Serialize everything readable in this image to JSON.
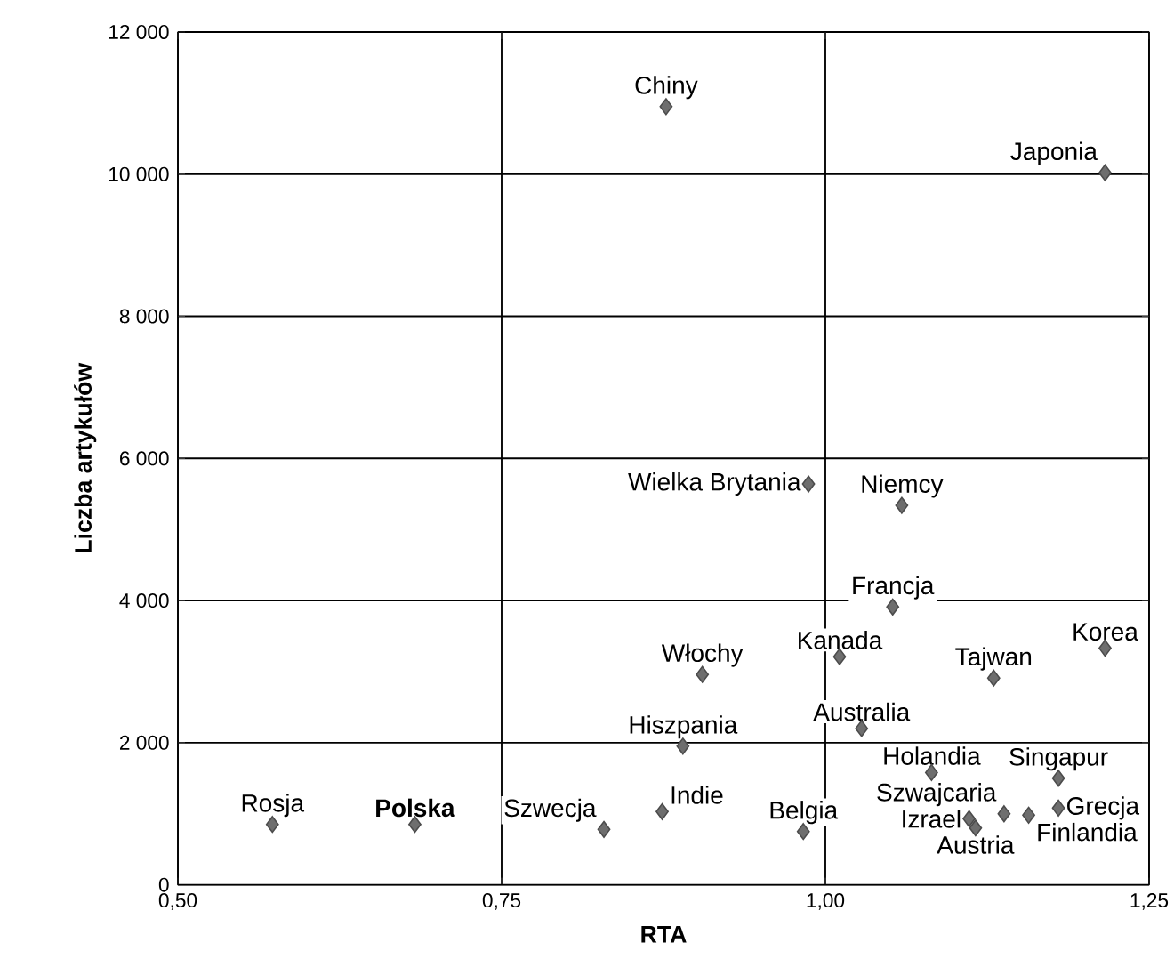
{
  "chart_data": {
    "type": "scatter",
    "xlabel": "RTA",
    "ylabel": "Liczba artykułów",
    "x": [
      0.573,
      0.683,
      0.829,
      0.874,
      0.89,
      0.983,
      1.011,
      1.052,
      1.028,
      1.082,
      1.13,
      1.216,
      1.18,
      1.18,
      1.138,
      1.157,
      1.111,
      1.116,
      0.877,
      1.216,
      0.987,
      1.059,
      0.905
    ],
    "series": [
      {
        "color": "#6e6e6e",
        "values": [
          850,
          850,
          780,
          1030,
          1950,
          750,
          3210,
          3910,
          2200,
          1580,
          2910,
          3330,
          1500,
          1080,
          1000,
          980,
          930,
          800,
          10950,
          10020,
          5640,
          5340,
          2960
        ]
      }
    ],
    "annotations": [
      {
        "text": "Rosja",
        "x": 0.573,
        "y": 850
      },
      {
        "text": "**Polska**",
        "x": 0.683,
        "y": 850
      },
      {
        "text": "Szwecja",
        "x": 0.829,
        "y": 780
      },
      {
        "text": "Indie",
        "x": 0.874,
        "y": 1030
      },
      {
        "text": "Hiszpania",
        "x": 0.89,
        "y": 1950
      },
      {
        "text": "Belgia",
        "x": 0.983,
        "y": 750
      },
      {
        "text": "Kanada",
        "x": 1.011,
        "y": 3210
      },
      {
        "text": "Francja",
        "x": 1.052,
        "y": 3910
      },
      {
        "text": "Australia",
        "x": 1.028,
        "y": 2200
      },
      {
        "text": "Holandia",
        "x": 1.082,
        "y": 1580
      },
      {
        "text": "Tajwan",
        "x": 1.13,
        "y": 2910
      },
      {
        "text": "Korea",
        "x": 1.216,
        "y": 3330
      },
      {
        "text": "Singapur",
        "x": 1.18,
        "y": 1500
      },
      {
        "text": "Grecja",
        "x": 1.18,
        "y": 1080
      },
      {
        "text": "Szwajcaria",
        "x": 1.138,
        "y": 1000
      },
      {
        "text": "Finlandia",
        "x": 1.157,
        "y": 980
      },
      {
        "text": "Izrael",
        "x": 1.111,
        "y": 930
      },
      {
        "text": "Austria",
        "x": 1.116,
        "y": 800
      },
      {
        "text": "Chiny",
        "x": 0.877,
        "y": 10950
      },
      {
        "text": "Japonia",
        "x": 1.216,
        "y": 10020
      },
      {
        "text": "Wielka Brytania",
        "x": 0.987,
        "y": 5640
      },
      {
        "text": "Niemcy",
        "x": 1.059,
        "y": 5340
      },
      {
        "text": "Włochy",
        "x": 0.905,
        "y": 2960
      }
    ],
    "xlim": [
      0.5,
      1.25
    ],
    "ylim": [
      0,
      12000
    ],
    "xticks": [
      {
        "value": 0.5,
        "label": "0,50"
      },
      {
        "value": 0.75,
        "label": "0,75"
      },
      {
        "value": 1.0,
        "label": "1,00"
      },
      {
        "value": 1.25,
        "label": "1,25"
      }
    ],
    "yticks": [
      0,
      {
        "value": 2000,
        "label": "2 000"
      },
      {
        "value": 4000,
        "label": "4 000"
      },
      {
        "value": 6000,
        "label": "6 000"
      },
      {
        "value": 8000,
        "label": "8 000"
      },
      {
        "value": 10000,
        "label": "10 000"
      },
      {
        "value": 12000,
        "label": "12 000"
      }
    ],
    "grid": true,
    "marker": "diamond"
  }
}
